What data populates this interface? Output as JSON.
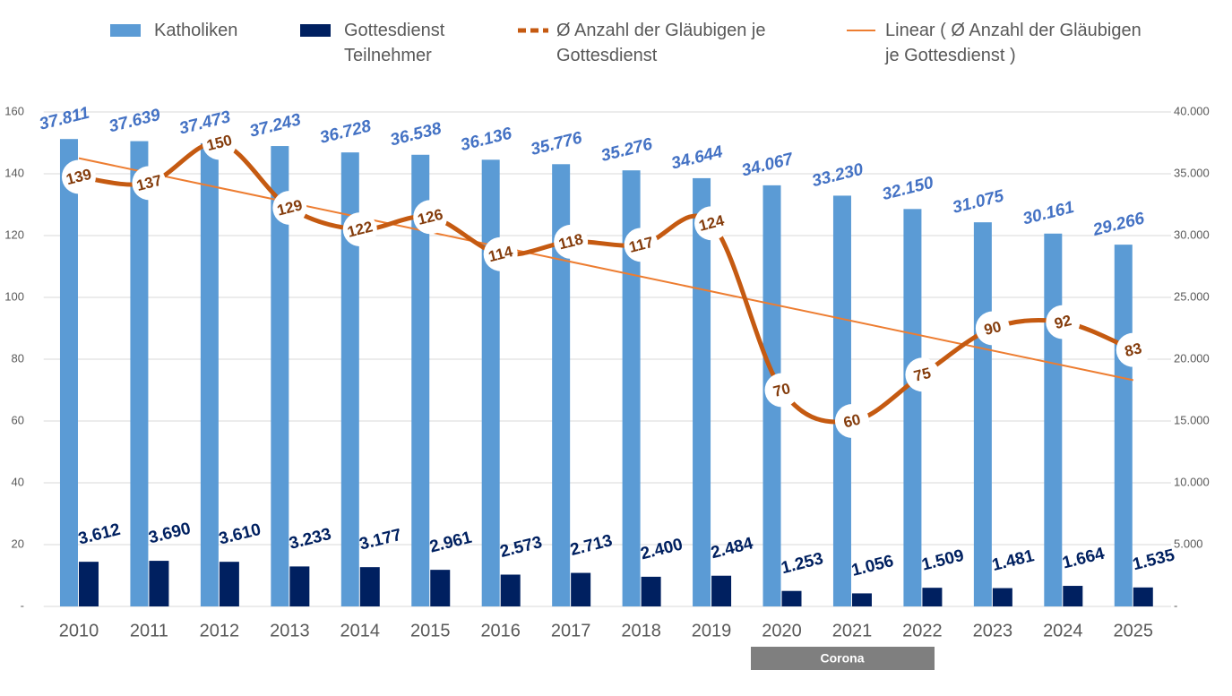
{
  "chart_data": {
    "type": "bar",
    "categories": [
      "2010",
      "2011",
      "2012",
      "2013",
      "2014",
      "2015",
      "2016",
      "2017",
      "2018",
      "2019",
      "2020",
      "2021",
      "2022",
      "2023",
      "2024",
      "2025"
    ],
    "series": [
      {
        "name": "Katholiken",
        "color": "#5b9bd5",
        "axis": "y2",
        "values": [
          37811,
          37639,
          37473,
          37243,
          36728,
          36538,
          36136,
          35776,
          35276,
          34644,
          34067,
          33230,
          32150,
          31075,
          30161,
          29266
        ],
        "value_labels": [
          "37.811",
          "37.639",
          "37.473",
          "37.243",
          "36.728",
          "36.538",
          "36.136",
          "35.776",
          "35.276",
          "34.644",
          "34.067",
          "33.230",
          "32.150",
          "31.075",
          "30.161",
          "29.266"
        ]
      },
      {
        "name": "Gottesdienst Teilnehmer",
        "color": "#002060",
        "axis": "y2",
        "values": [
          3612,
          3690,
          3610,
          3233,
          3177,
          2961,
          2573,
          2713,
          2400,
          2484,
          1253,
          1056,
          1509,
          1481,
          1664,
          1535
        ],
        "value_labels": [
          "3.612",
          "3.690",
          "3.610",
          "3.233",
          "3.177",
          "2.961",
          "2.573",
          "2.713",
          "2.400",
          "2.484",
          "1.253",
          "1.056",
          "1.509",
          "1.481",
          "1.664",
          "1.535"
        ]
      },
      {
        "name": "Ø Anzahl der Gläubigen je Gottesdienst",
        "color": "#c55a11",
        "type": "line",
        "values": [
          139,
          137,
          150,
          129,
          122,
          126,
          114,
          118,
          117,
          124,
          70,
          60,
          75,
          90,
          92,
          83
        ]
      },
      {
        "name": "Linear ( Ø Anzahl der Gläubigen je Gottesdienst )",
        "color": "#ed7d31",
        "type": "trendline"
      }
    ],
    "ylim": [
      0,
      160
    ],
    "yticks": [
      {
        "value": 0,
        "label": "-"
      },
      20,
      40,
      60,
      80,
      100,
      120,
      140,
      160
    ],
    "y2lim": [
      0,
      40000
    ],
    "y2ticks": [
      {
        "value": 0,
        "label": "-"
      },
      {
        "value": 5000,
        "label": "5.000"
      },
      {
        "value": 10000,
        "label": "10.000"
      },
      {
        "value": 15000,
        "label": "15.000"
      },
      {
        "value": 20000,
        "label": "20.000"
      },
      {
        "value": 25000,
        "label": "25.000"
      },
      {
        "value": 30000,
        "label": "30.000"
      },
      {
        "value": 35000,
        "label": "35.000"
      },
      {
        "value": 40000,
        "label": "40.000"
      }
    ],
    "grid": true,
    "annotation": "Corona"
  }
}
